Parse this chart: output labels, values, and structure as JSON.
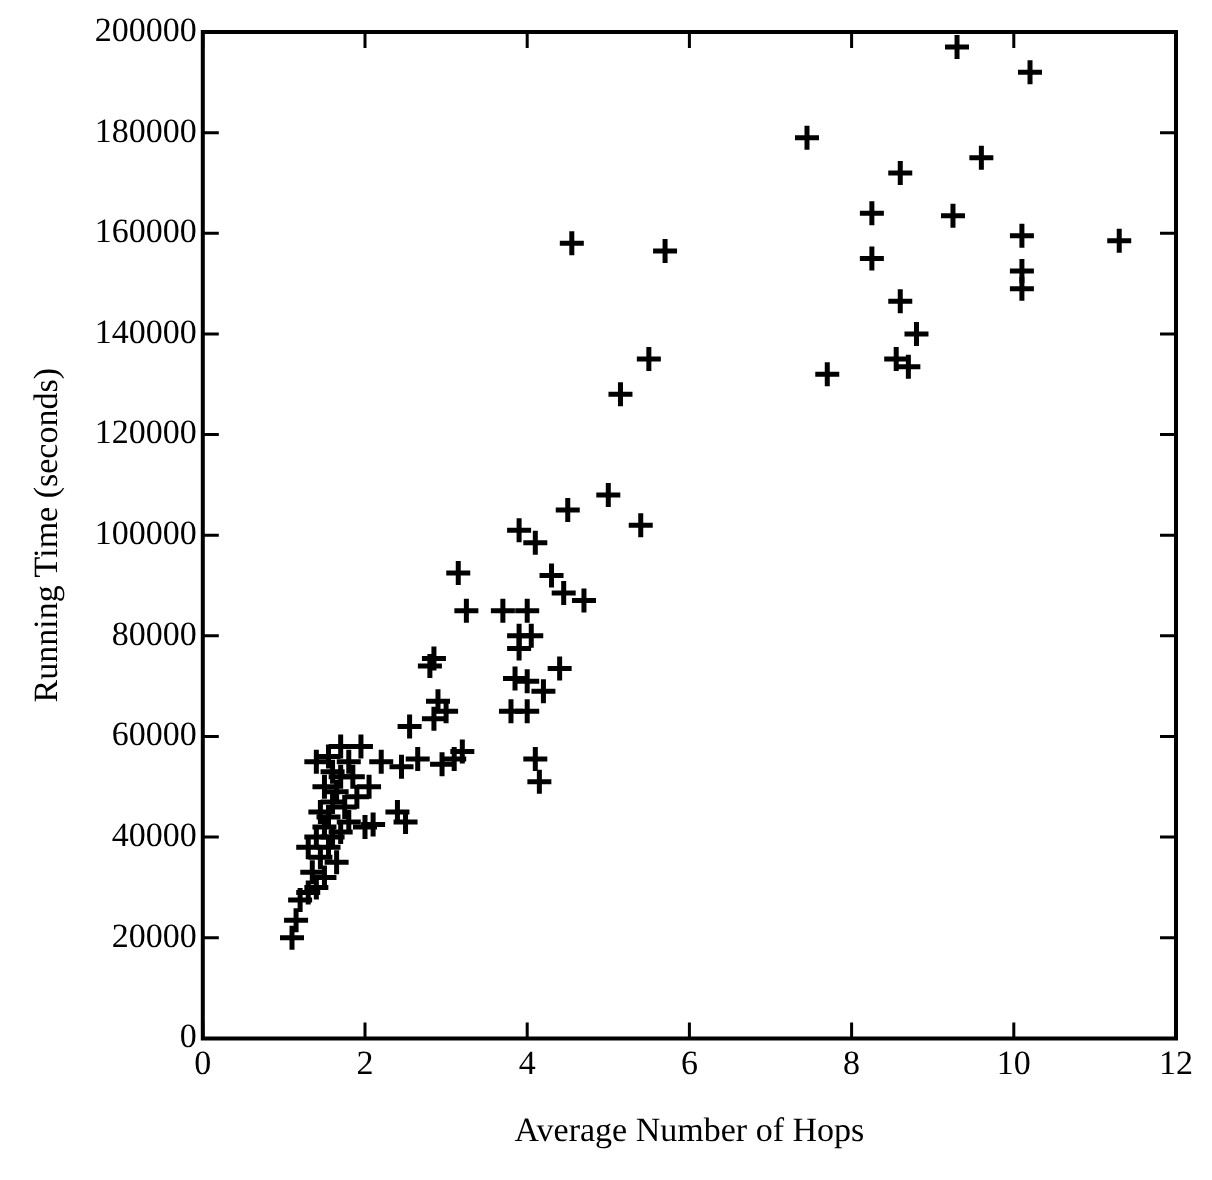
{
  "chart_data": {
    "type": "scatter",
    "xlabel": "Average Number of Hops",
    "ylabel": "Running Time (seconds)",
    "xlim": [
      0,
      12
    ],
    "xticks": [
      0,
      2,
      4,
      6,
      8,
      10,
      12
    ],
    "ylim": [
      0,
      200000
    ],
    "yticks": [
      0,
      20000,
      40000,
      60000,
      80000,
      100000,
      120000,
      140000,
      160000,
      180000,
      200000
    ],
    "grid": false,
    "legend": false,
    "marker": "cross",
    "series": [
      {
        "color": "#000000",
        "x": [
          9.3,
          10.2,
          7.45,
          9.6,
          8.6,
          8.25,
          9.25,
          10.1,
          11.3,
          8.25,
          10.1,
          10.1,
          8.6,
          8.8,
          8.55,
          8.7,
          7.7,
          4.55,
          5.7,
          5.5,
          5.15,
          5.0,
          4.5,
          5.4,
          3.9,
          4.1,
          4.3,
          3.15,
          3.25,
          3.7,
          4.0,
          4.45,
          4.7,
          4.4,
          3.9,
          4.05,
          3.9,
          3.85,
          4.0,
          4.2,
          3.8,
          4.0,
          4.1,
          4.15,
          2.8,
          2.85,
          2.9,
          3.0,
          2.85,
          2.95,
          3.1,
          3.2,
          2.55,
          2.65,
          2.45,
          2.5,
          2.4,
          2.2,
          2.1,
          2.0,
          1.1,
          1.15,
          1.2,
          1.3,
          1.4,
          1.35,
          1.45,
          1.3,
          1.4,
          1.5,
          1.55,
          1.45,
          1.6,
          1.65,
          1.5,
          1.7,
          1.85,
          1.4,
          1.55,
          1.7,
          1.95,
          1.6,
          1.75,
          1.8,
          1.55,
          1.65,
          1.5,
          1.9,
          1.7,
          1.6,
          2.05,
          1.8
        ],
        "values": [
          197000,
          192000,
          179000,
          175000,
          172000,
          164000,
          163500,
          159500,
          158500,
          155000,
          152500,
          149000,
          146500,
          140000,
          135000,
          133500,
          132000,
          158000,
          156500,
          135000,
          128000,
          108000,
          105000,
          102000,
          101000,
          98500,
          92000,
          92500,
          85000,
          85000,
          85000,
          88500,
          87000,
          73500,
          80000,
          80000,
          77500,
          71500,
          71000,
          69000,
          65000,
          65000,
          55500,
          51000,
          74000,
          75500,
          67000,
          65000,
          63500,
          54500,
          55500,
          57000,
          62000,
          55500,
          54000,
          43000,
          45000,
          55000,
          42500,
          42000,
          20000,
          23500,
          27500,
          29000,
          30000,
          33000,
          36000,
          38000,
          40000,
          42000,
          44000,
          45000,
          47000,
          49000,
          50000,
          52000,
          52000,
          55000,
          56000,
          58000,
          58000,
          53000,
          46000,
          43000,
          38000,
          35000,
          32000,
          48000,
          41000,
          40000,
          50000,
          55000
        ]
      }
    ]
  }
}
